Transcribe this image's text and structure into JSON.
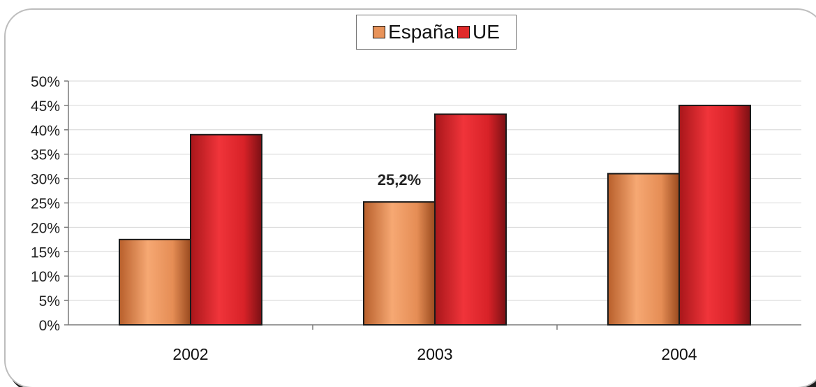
{
  "chart_data": {
    "type": "bar",
    "categories": [
      "2002",
      "2003",
      "2004"
    ],
    "series": [
      {
        "name": "España",
        "values": [
          17.5,
          25.2,
          31.0
        ],
        "color": "#e8935a"
      },
      {
        "name": "UE",
        "values": [
          39.0,
          43.2,
          45.0
        ],
        "color": "#e02a2a"
      }
    ],
    "ylim": [
      0,
      50
    ],
    "yticks": [
      "0%",
      "5%",
      "10%",
      "15%",
      "20%",
      "25%",
      "30%",
      "35%",
      "40%",
      "45%",
      "50%"
    ],
    "data_labels": [
      {
        "series": 0,
        "category": 1,
        "text": "25,2%"
      }
    ],
    "legend": "top-center",
    "grid": true,
    "title": "",
    "xlabel": "",
    "ylabel": ""
  }
}
